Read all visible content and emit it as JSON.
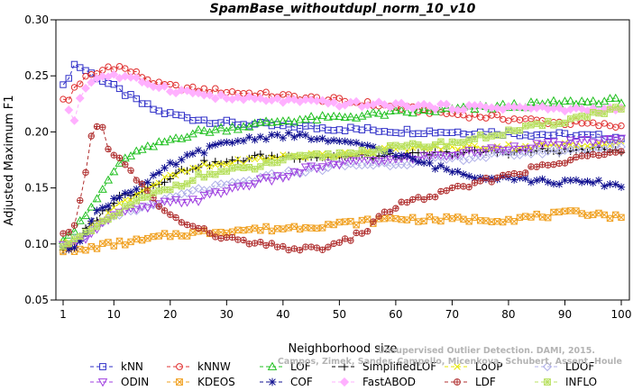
{
  "chart_data": {
    "type": "line",
    "title": "SpamBase_withoutdupl_norm_10_v10",
    "xlabel": "Neighborhood size",
    "ylabel": "Adjusted Maximum F1",
    "xlim": [
      1,
      100
    ],
    "ylim": [
      0.05,
      0.3
    ],
    "xticks": [
      1,
      10,
      20,
      30,
      40,
      50,
      60,
      70,
      80,
      90,
      100
    ],
    "yticks": [
      0.05,
      0.1,
      0.15,
      0.2,
      0.25,
      0.3
    ],
    "ytick_labels": [
      "0.05",
      "0.10",
      "0.15",
      "0.20",
      "0.25",
      "0.30"
    ],
    "grid": false,
    "legend_position": "bottom",
    "watermark": {
      "line1": "Unsupervised Outlier Detection. DAMI, 2015.",
      "line2": "Campos, Zimek, Sander, Campello, Micenkova, Schubert, Assent, Houle"
    },
    "series": [
      {
        "name": "kNN",
        "color": "#3030c8",
        "marker": "square",
        "anchors": [
          [
            1,
            0.24
          ],
          [
            2,
            0.25
          ],
          [
            3,
            0.26
          ],
          [
            4,
            0.258
          ],
          [
            6,
            0.252
          ],
          [
            8,
            0.246
          ],
          [
            10,
            0.24
          ],
          [
            14,
            0.228
          ],
          [
            18,
            0.218
          ],
          [
            24,
            0.212
          ],
          [
            30,
            0.208
          ],
          [
            40,
            0.205
          ],
          [
            50,
            0.203
          ],
          [
            60,
            0.201
          ],
          [
            70,
            0.2
          ],
          [
            80,
            0.199
          ],
          [
            90,
            0.197
          ],
          [
            100,
            0.195
          ]
        ]
      },
      {
        "name": "kNNW",
        "color": "#e03030",
        "marker": "circle",
        "anchors": [
          [
            1,
            0.228
          ],
          [
            2,
            0.228
          ],
          [
            3,
            0.24
          ],
          [
            5,
            0.248
          ],
          [
            7,
            0.252
          ],
          [
            9,
            0.258
          ],
          [
            11,
            0.258
          ],
          [
            14,
            0.252
          ],
          [
            18,
            0.242
          ],
          [
            24,
            0.238
          ],
          [
            30,
            0.236
          ],
          [
            40,
            0.232
          ],
          [
            50,
            0.228
          ],
          [
            60,
            0.222
          ],
          [
            70,
            0.216
          ],
          [
            80,
            0.212
          ],
          [
            90,
            0.208
          ],
          [
            100,
            0.205
          ]
        ]
      },
      {
        "name": "LOF",
        "color": "#20c020",
        "marker": "triangle",
        "anchors": [
          [
            1,
            0.105
          ],
          [
            3,
            0.112
          ],
          [
            5,
            0.125
          ],
          [
            7,
            0.14
          ],
          [
            10,
            0.165
          ],
          [
            13,
            0.18
          ],
          [
            16,
            0.185
          ],
          [
            20,
            0.193
          ],
          [
            25,
            0.2
          ],
          [
            30,
            0.203
          ],
          [
            40,
            0.21
          ],
          [
            50,
            0.213
          ],
          [
            60,
            0.217
          ],
          [
            70,
            0.22
          ],
          [
            80,
            0.223
          ],
          [
            90,
            0.226
          ],
          [
            100,
            0.228
          ]
        ]
      },
      {
        "name": "SimplifiedLOF",
        "color": "#000000",
        "marker": "plus",
        "anchors": [
          [
            1,
            0.095
          ],
          [
            3,
            0.1
          ],
          [
            5,
            0.112
          ],
          [
            8,
            0.128
          ],
          [
            11,
            0.142
          ],
          [
            15,
            0.148
          ],
          [
            18,
            0.155
          ],
          [
            22,
            0.165
          ],
          [
            26,
            0.172
          ],
          [
            30,
            0.172
          ],
          [
            35,
            0.178
          ],
          [
            40,
            0.178
          ],
          [
            45,
            0.178
          ],
          [
            50,
            0.178
          ],
          [
            55,
            0.178
          ],
          [
            60,
            0.178
          ],
          [
            65,
            0.18
          ],
          [
            70,
            0.181
          ],
          [
            75,
            0.182
          ],
          [
            80,
            0.182
          ],
          [
            85,
            0.183
          ],
          [
            90,
            0.183
          ],
          [
            95,
            0.184
          ],
          [
            100,
            0.184
          ]
        ]
      },
      {
        "name": "LoOP",
        "color": "#e6e600",
        "marker": "cross",
        "anchors": [
          [
            1,
            0.1
          ],
          [
            3,
            0.103
          ],
          [
            6,
            0.115
          ],
          [
            10,
            0.132
          ],
          [
            15,
            0.148
          ],
          [
            20,
            0.16
          ],
          [
            25,
            0.168
          ],
          [
            30,
            0.172
          ],
          [
            40,
            0.178
          ],
          [
            50,
            0.18
          ],
          [
            60,
            0.185
          ],
          [
            70,
            0.186
          ],
          [
            80,
            0.187
          ],
          [
            90,
            0.188
          ],
          [
            100,
            0.19
          ]
        ]
      },
      {
        "name": "LDOF",
        "color": "#b0b0e8",
        "marker": "diamond",
        "anchors": [
          [
            1,
            0.1
          ],
          [
            4,
            0.105
          ],
          [
            8,
            0.118
          ],
          [
            12,
            0.128
          ],
          [
            16,
            0.133
          ],
          [
            20,
            0.14
          ],
          [
            25,
            0.148
          ],
          [
            30,
            0.152
          ],
          [
            35,
            0.157
          ],
          [
            40,
            0.163
          ],
          [
            45,
            0.166
          ],
          [
            50,
            0.17
          ],
          [
            60,
            0.172
          ],
          [
            70,
            0.176
          ],
          [
            80,
            0.18
          ],
          [
            90,
            0.184
          ],
          [
            100,
            0.186
          ]
        ]
      },
      {
        "name": "ODIN",
        "color": "#a040e0",
        "marker": "triangle-down",
        "anchors": [
          [
            1,
            0.098
          ],
          [
            4,
            0.102
          ],
          [
            7,
            0.115
          ],
          [
            10,
            0.125
          ],
          [
            13,
            0.13
          ],
          [
            16,
            0.133
          ],
          [
            20,
            0.137
          ],
          [
            25,
            0.14
          ],
          [
            30,
            0.148
          ],
          [
            35,
            0.155
          ],
          [
            40,
            0.16
          ],
          [
            45,
            0.168
          ],
          [
            50,
            0.172
          ],
          [
            55,
            0.175
          ],
          [
            60,
            0.175
          ],
          [
            70,
            0.18
          ],
          [
            80,
            0.186
          ],
          [
            90,
            0.19
          ],
          [
            100,
            0.193
          ]
        ]
      },
      {
        "name": "KDEOS",
        "color": "#f0a020",
        "marker": "box-x",
        "anchors": [
          [
            1,
            0.095
          ],
          [
            3,
            0.093
          ],
          [
            5,
            0.095
          ],
          [
            7,
            0.098
          ],
          [
            10,
            0.1
          ],
          [
            15,
            0.103
          ],
          [
            20,
            0.108
          ],
          [
            25,
            0.11
          ],
          [
            30,
            0.112
          ],
          [
            40,
            0.114
          ],
          [
            50,
            0.118
          ],
          [
            55,
            0.12
          ],
          [
            60,
            0.123
          ],
          [
            65,
            0.122
          ],
          [
            70,
            0.122
          ],
          [
            80,
            0.122
          ],
          [
            90,
            0.127
          ],
          [
            95,
            0.128
          ],
          [
            100,
            0.123
          ]
        ]
      },
      {
        "name": "COF",
        "color": "#101090",
        "marker": "asterisk",
        "anchors": [
          [
            1,
            0.095
          ],
          [
            3,
            0.098
          ],
          [
            5,
            0.112
          ],
          [
            7,
            0.128
          ],
          [
            10,
            0.14
          ],
          [
            13,
            0.148
          ],
          [
            16,
            0.155
          ],
          [
            20,
            0.17
          ],
          [
            25,
            0.182
          ],
          [
            30,
            0.19
          ],
          [
            35,
            0.195
          ],
          [
            40,
            0.197
          ],
          [
            45,
            0.195
          ],
          [
            50,
            0.19
          ],
          [
            55,
            0.188
          ],
          [
            60,
            0.18
          ],
          [
            65,
            0.172
          ],
          [
            70,
            0.165
          ],
          [
            75,
            0.16
          ],
          [
            80,
            0.16
          ],
          [
            85,
            0.156
          ],
          [
            90,
            0.155
          ],
          [
            95,
            0.155
          ],
          [
            100,
            0.152
          ]
        ]
      },
      {
        "name": "FastABOD",
        "color": "#ffb0ff",
        "marker": "diamond-filled",
        "anchors": [
          [
            2,
            0.22
          ],
          [
            3,
            0.21
          ],
          [
            4,
            0.232
          ],
          [
            6,
            0.245
          ],
          [
            8,
            0.25
          ],
          [
            10,
            0.25
          ],
          [
            15,
            0.245
          ],
          [
            20,
            0.238
          ],
          [
            30,
            0.23
          ],
          [
            40,
            0.228
          ],
          [
            50,
            0.225
          ],
          [
            60,
            0.224
          ],
          [
            70,
            0.222
          ],
          [
            80,
            0.222
          ],
          [
            90,
            0.22
          ],
          [
            100,
            0.22
          ]
        ]
      },
      {
        "name": "LDF",
        "color": "#b03030",
        "marker": "circle-plus",
        "anchors": [
          [
            1,
            0.108
          ],
          [
            2,
            0.108
          ],
          [
            3,
            0.115
          ],
          [
            4,
            0.14
          ],
          [
            5,
            0.165
          ],
          [
            6,
            0.195
          ],
          [
            7,
            0.205
          ],
          [
            8,
            0.203
          ],
          [
            9,
            0.187
          ],
          [
            10,
            0.18
          ],
          [
            12,
            0.17
          ],
          [
            14,
            0.158
          ],
          [
            17,
            0.14
          ],
          [
            20,
            0.125
          ],
          [
            25,
            0.113
          ],
          [
            30,
            0.105
          ],
          [
            35,
            0.1
          ],
          [
            40,
            0.097
          ],
          [
            45,
            0.095
          ],
          [
            50,
            0.1
          ],
          [
            55,
            0.113
          ],
          [
            58,
            0.128
          ],
          [
            62,
            0.138
          ],
          [
            66,
            0.142
          ],
          [
            70,
            0.148
          ],
          [
            75,
            0.155
          ],
          [
            80,
            0.162
          ],
          [
            85,
            0.168
          ],
          [
            90,
            0.173
          ],
          [
            95,
            0.18
          ],
          [
            100,
            0.185
          ]
        ]
      },
      {
        "name": "INFLO",
        "color": "#b8e060",
        "marker": "star-box",
        "anchors": [
          [
            1,
            0.1
          ],
          [
            4,
            0.105
          ],
          [
            8,
            0.118
          ],
          [
            12,
            0.132
          ],
          [
            16,
            0.142
          ],
          [
            20,
            0.15
          ],
          [
            25,
            0.16
          ],
          [
            30,
            0.165
          ],
          [
            35,
            0.168
          ],
          [
            40,
            0.175
          ],
          [
            45,
            0.178
          ],
          [
            50,
            0.18
          ],
          [
            55,
            0.183
          ],
          [
            60,
            0.186
          ],
          [
            70,
            0.19
          ],
          [
            80,
            0.2
          ],
          [
            90,
            0.21
          ],
          [
            100,
            0.222
          ]
        ]
      }
    ]
  }
}
